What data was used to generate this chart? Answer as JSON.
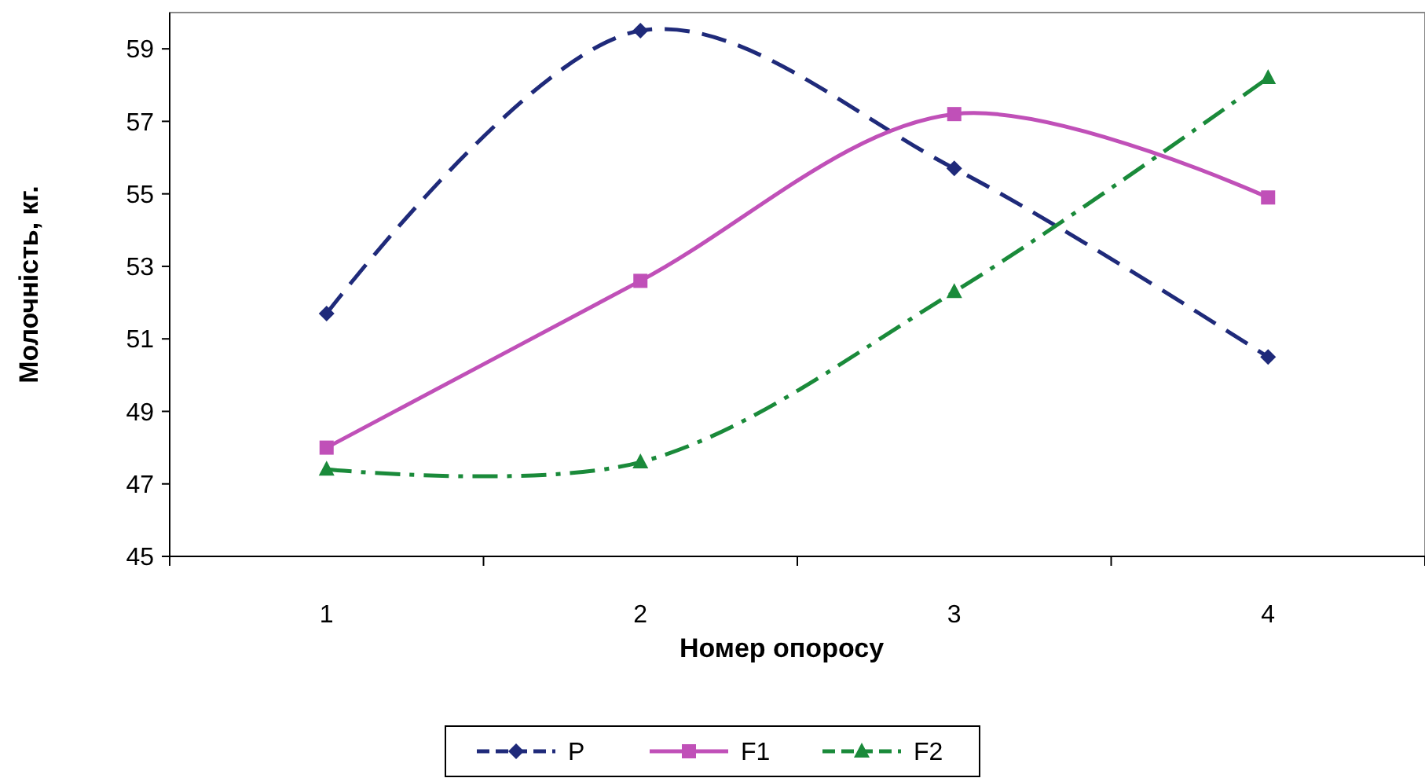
{
  "chart_data": {
    "type": "line",
    "xlabel": "Номер опоросу",
    "ylabel": "Молочність,  кг.",
    "categories": [
      "1",
      "2",
      "3",
      "4"
    ],
    "series": [
      {
        "name": "P",
        "color": "#1f2a7a",
        "values": [
          51.7,
          59.5,
          55.7,
          50.5
        ],
        "marker": "diamond",
        "line_style": "dashed"
      },
      {
        "name": "F1",
        "color": "#c050b8",
        "values": [
          48.0,
          52.6,
          57.2,
          54.9
        ],
        "marker": "square",
        "line_style": "solid"
      },
      {
        "name": "F2",
        "color": "#1a8a3a",
        "values": [
          47.4,
          47.6,
          52.3,
          58.2
        ],
        "marker": "triangle",
        "line_style": "dashdot"
      }
    ],
    "ylim": [
      45,
      60
    ],
    "yticks": [
      45,
      47,
      49,
      51,
      53,
      55,
      57,
      59
    ],
    "grid": false,
    "legend": "bottom"
  }
}
